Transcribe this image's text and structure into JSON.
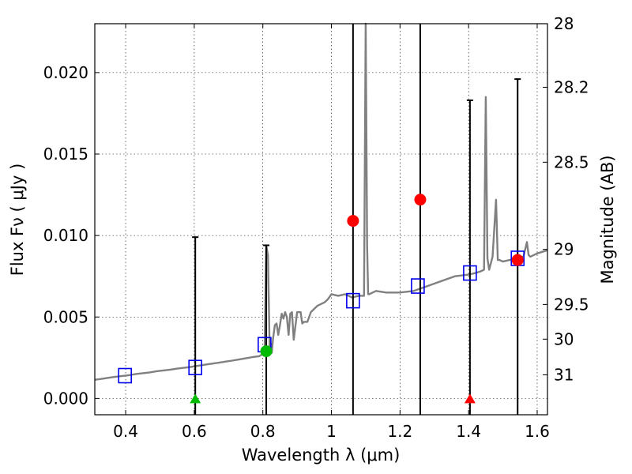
{
  "chart_data": {
    "type": "scatter",
    "xlabel": "Wavelength  λ (μm)",
    "ylabel": "Flux  Fν  ( μJy )",
    "ylabel_right": "Magnitude (AB)",
    "xlim": [
      0.31,
      1.63
    ],
    "ylim": [
      -0.001,
      0.023
    ],
    "xticks": [
      0.4,
      0.6,
      0.8,
      1.0,
      1.2,
      1.4,
      1.6
    ],
    "xtick_labels": [
      "0.4",
      "0.6",
      "0.8",
      "1",
      "1.2",
      "1.4",
      "1.6"
    ],
    "yticks": [
      0.0,
      0.005,
      0.01,
      0.015,
      0.02
    ],
    "ytick_labels": [
      "0.000",
      "0.005",
      "0.010",
      "0.015",
      "0.020"
    ],
    "right_ticks": [
      {
        "label": "28",
        "flux": 0.023
      },
      {
        "label": "28.2",
        "flux": 0.0191
      },
      {
        "label": "28.5",
        "flux": 0.0145
      },
      {
        "label": "29",
        "flux": 0.00915
      },
      {
        "label": "29.5",
        "flux": 0.00577
      },
      {
        "label": "30",
        "flux": 0.00364
      },
      {
        "label": "31",
        "flux": 0.00145
      }
    ],
    "grid": true,
    "colors": {
      "sed": "#808080",
      "model": "#0000ee",
      "detection": "#00bb00",
      "observed": "#ff0000",
      "errorbar": "#000000"
    },
    "series": [
      {
        "name": "model SED",
        "type": "line",
        "x": [
          0.31,
          0.33,
          0.35,
          0.37,
          0.39,
          0.41,
          0.43,
          0.45,
          0.47,
          0.49,
          0.51,
          0.53,
          0.55,
          0.57,
          0.59,
          0.61,
          0.63,
          0.65,
          0.67,
          0.69,
          0.71,
          0.73,
          0.75,
          0.77,
          0.79,
          0.805,
          0.81,
          0.815,
          0.82,
          0.823,
          0.826,
          0.83,
          0.835,
          0.84,
          0.845,
          0.85,
          0.855,
          0.86,
          0.865,
          0.87,
          0.875,
          0.88,
          0.885,
          0.89,
          0.9,
          0.91,
          0.915,
          0.92,
          0.93,
          0.94,
          0.95,
          0.96,
          0.97,
          0.98,
          0.99,
          1.0,
          1.02,
          1.04,
          1.06,
          1.08,
          1.095,
          1.1,
          1.104,
          1.107,
          1.11,
          1.13,
          1.16,
          1.2,
          1.24,
          1.28,
          1.32,
          1.36,
          1.4,
          1.42,
          1.435,
          1.445,
          1.45,
          1.455,
          1.46,
          1.47,
          1.48,
          1.485,
          1.49,
          1.5,
          1.52,
          1.54,
          1.56,
          1.57,
          1.575,
          1.58,
          1.6,
          1.63
        ],
        "y": [
          0.00115,
          0.0012,
          0.00127,
          0.00133,
          0.00138,
          0.00143,
          0.0015,
          0.00155,
          0.0016,
          0.00167,
          0.00172,
          0.00177,
          0.00183,
          0.00188,
          0.00194,
          0.002,
          0.00207,
          0.00213,
          0.00219,
          0.00226,
          0.00232,
          0.00239,
          0.00246,
          0.00254,
          0.0026,
          0.0028,
          0.0094,
          0.0088,
          0.0029,
          0.0034,
          0.0028,
          0.0037,
          0.0045,
          0.0046,
          0.0039,
          0.0045,
          0.0052,
          0.0049,
          0.0053,
          0.005,
          0.0039,
          0.0052,
          0.0053,
          0.0036,
          0.0053,
          0.0053,
          0.0046,
          0.0047,
          0.0047,
          0.0053,
          0.0055,
          0.0057,
          0.0058,
          0.0059,
          0.0061,
          0.0064,
          0.0063,
          0.0064,
          0.0062,
          0.0063,
          0.0063,
          0.0238,
          0.0094,
          0.0064,
          0.0064,
          0.0066,
          0.0065,
          0.0065,
          0.0066,
          0.0069,
          0.0072,
          0.0075,
          0.0076,
          0.0077,
          0.0078,
          0.0079,
          0.0185,
          0.0086,
          0.0079,
          0.0087,
          0.0122,
          0.0085,
          0.0085,
          0.0084,
          0.0085,
          0.0086,
          0.0087,
          0.0096,
          0.0088,
          0.0087,
          0.0089,
          0.0091
        ]
      },
      {
        "name": "model band fluxes",
        "type": "scatter",
        "marker": "open-square",
        "x": [
          0.398,
          0.603,
          0.805,
          1.063,
          1.252,
          1.404,
          1.543
        ],
        "y": [
          0.0014,
          0.0019,
          0.0033,
          0.006,
          0.0069,
          0.0077,
          0.0086
        ]
      },
      {
        "name": "detections",
        "type": "scatter",
        "marker": "circle",
        "x": [
          0.81
        ],
        "y": [
          0.0029
        ]
      },
      {
        "name": "observed fluxes",
        "type": "scatter",
        "marker": "circle",
        "x": [
          1.063,
          1.259,
          1.543
        ],
        "y": [
          0.0109,
          0.0122,
          0.0085
        ]
      },
      {
        "name": "non-detections",
        "type": "scatter",
        "marker": "triangle",
        "x": [
          0.603,
          1.404
        ],
        "y": [
          0.0,
          0.0
        ],
        "colors": [
          "detection",
          "observed"
        ]
      },
      {
        "name": "error bars",
        "type": "errorbar",
        "x": [
          0.603,
          0.81,
          1.063,
          1.259,
          1.404,
          1.543
        ],
        "low": [
          -0.001,
          -0.001,
          -0.001,
          -0.001,
          -0.001,
          -0.001
        ],
        "high": [
          0.0099,
          0.0094,
          0.023,
          0.023,
          0.0183,
          0.0196
        ],
        "capped": [
          true,
          true,
          false,
          false,
          true,
          true
        ]
      }
    ]
  }
}
